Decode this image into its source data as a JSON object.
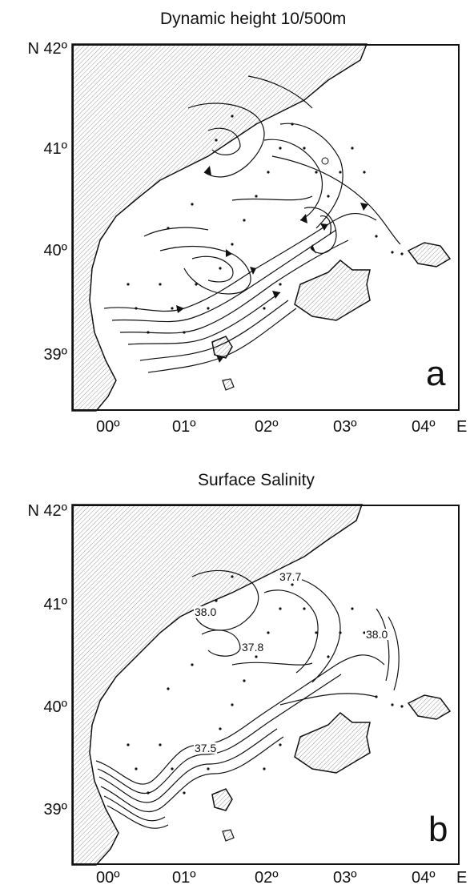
{
  "panels": [
    {
      "title": "Dynamic height 10/500m",
      "letter": "a",
      "lat_labels": [
        "N 42º",
        "41º",
        "40º",
        "39º"
      ],
      "lon_labels": [
        "00º",
        "01º",
        "02º",
        "03º",
        "04º",
        "E"
      ],
      "contour_labels": []
    },
    {
      "title": "Surface Salinity",
      "letter": "b",
      "lat_labels": [
        "N 42º",
        "41º",
        "40º",
        "39º"
      ],
      "lon_labels": [
        "00º",
        "01º",
        "02º",
        "03º",
        "04º",
        "E"
      ],
      "contour_labels": [
        "37.7",
        "38.0",
        "37.8",
        "38.0",
        "37.5"
      ]
    }
  ],
  "colors": {
    "land_hatch": "#9a9a9a",
    "ink": "#111111",
    "sea": "#ffffff"
  }
}
